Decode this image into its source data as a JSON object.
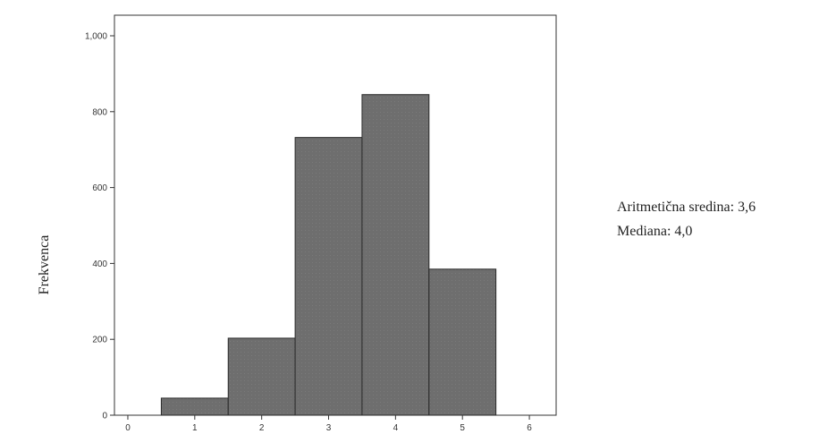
{
  "chart_data": {
    "type": "bar",
    "title": "",
    "xlabel": "",
    "ylabel": "Frekvenca",
    "categories": [
      1,
      2,
      3,
      4,
      5
    ],
    "values": [
      45,
      203,
      732,
      845,
      385
    ],
    "x_ticks": [
      "0",
      "1",
      "2",
      "3",
      "4",
      "5",
      "6"
    ],
    "y_ticks": [
      "0",
      "200",
      "400",
      "600",
      "800",
      "1,000"
    ],
    "xlim": [
      -0.2,
      6.4
    ],
    "ylim": [
      0,
      1000
    ],
    "bar_color": "#6e6e6e",
    "grid": false,
    "legend": "none"
  },
  "annotations": {
    "mean": "Aritmetična sredina: 3,6",
    "median": "Mediana: 4,0"
  }
}
